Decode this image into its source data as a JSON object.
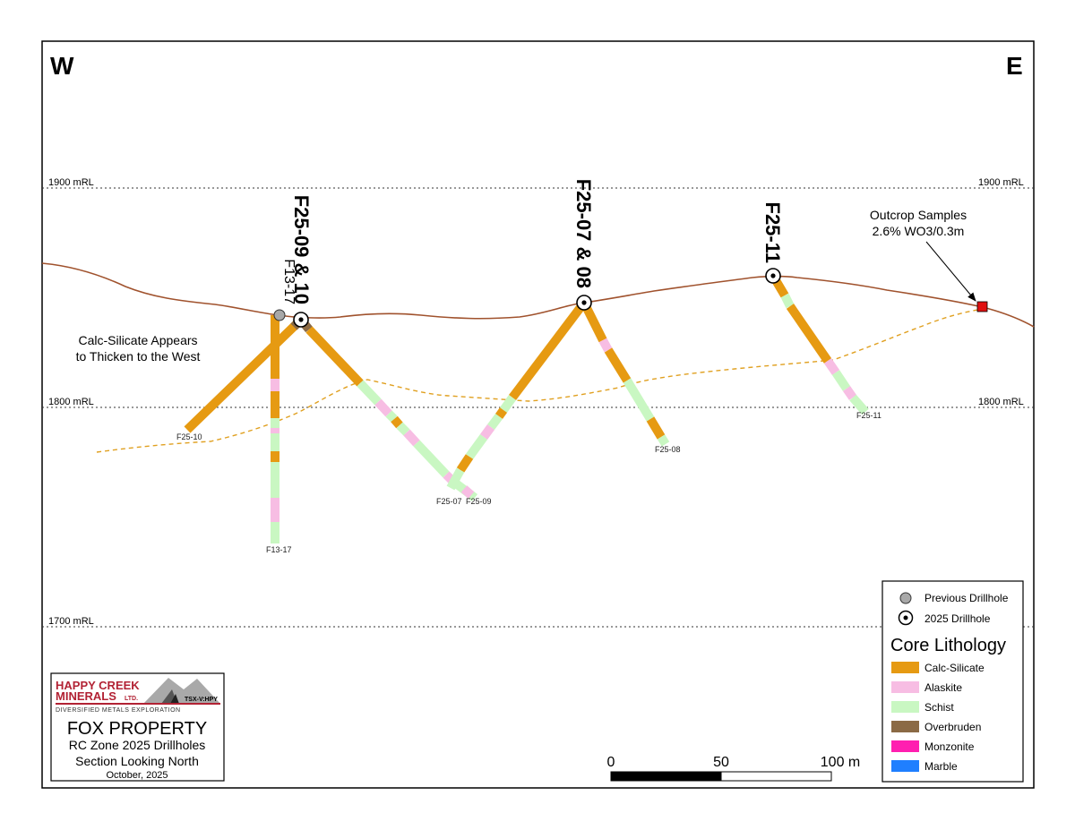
{
  "compass": {
    "west": "W",
    "east": "E"
  },
  "elevation_lines": [
    {
      "label": "1900 mRL",
      "elevation": 1900
    },
    {
      "label": "1800 mRL",
      "elevation": 1800
    },
    {
      "label": "1700 mRL",
      "elevation": 1700
    }
  ],
  "drillhole_labels": {
    "f13_17": "F13-17",
    "f25_09_10": "F25-09 & 10",
    "f25_07_08": "F25-07 & 08",
    "f25_11": "F25-11"
  },
  "end_labels": {
    "f25_10": "F25-10",
    "f13_17": "F13-17",
    "f25_07": "F25-07",
    "f25_09": "F25-09",
    "f25_08": "F25-08",
    "f25_11": "F25-11"
  },
  "notes": {
    "calc_line1": "Calc-Silicate Appears",
    "calc_line2": "to Thicken to the West",
    "outcrop_line1": "Outcrop Samples",
    "outcrop_line2": "2.6% WO3/0.3m"
  },
  "scale_bar": {
    "labels": [
      "0",
      "50",
      "100 m"
    ]
  },
  "legend": {
    "previous_drillhole": "Previous Drillhole",
    "drillhole_2025": "2025 Drillhole",
    "title": "Core Lithology",
    "items": [
      {
        "label": "Calc-Silicate",
        "color": "#e69a12"
      },
      {
        "label": "Alaskite",
        "color": "#f7bde3"
      },
      {
        "label": "Schist",
        "color": "#c9f7c2"
      },
      {
        "label": "Overbruden",
        "color": "#8b6a45"
      },
      {
        "label": "Monzonite",
        "color": "#ff1fb0"
      },
      {
        "label": "Marble",
        "color": "#1f7fff"
      }
    ]
  },
  "title_block": {
    "company_line1": "HAPPY CREEK",
    "company_line2": "MINERALS",
    "company_suffix": "LTD.",
    "ticker": "TSX-V:HPY",
    "tagline": "DIVERSIFIED METALS EXPLORATION",
    "title": "FOX PROPERTY",
    "subtitle1": "RC Zone 2025 Drillholes",
    "subtitle2": "Section Looking North",
    "date": "October, 2025"
  },
  "colors": {
    "calc_silicate": "#e69a12",
    "alaskite": "#f7bde3",
    "schist": "#c9f7c2",
    "overburden": "#8b6a45",
    "topography": "#a0522d",
    "contact": "#e0a020",
    "outcrop": "#e01010",
    "brand_red": "#b22234"
  }
}
